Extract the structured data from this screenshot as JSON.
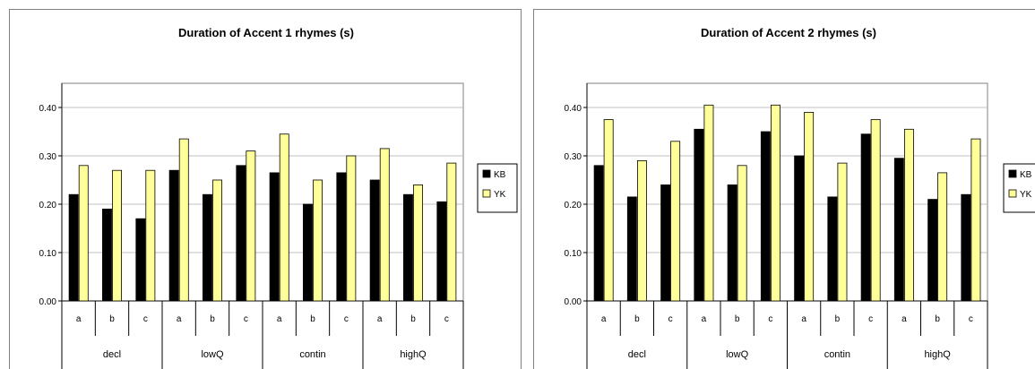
{
  "chart_data": [
    {
      "type": "bar",
      "title": "Duration of Accent 1 rhymes (s)",
      "xlabel": "",
      "ylabel": "",
      "ylim": [
        0,
        0.45
      ],
      "yticks": [
        "0.00",
        "0.10",
        "0.20",
        "0.30",
        "0.40"
      ],
      "ytick_values": [
        0,
        0.1,
        0.2,
        0.3,
        0.4
      ],
      "groups": [
        "decl",
        "lowQ",
        "contin",
        "highQ"
      ],
      "categories": [
        "a",
        "b",
        "c",
        "a",
        "b",
        "c",
        "a",
        "b",
        "c",
        "a",
        "b",
        "c"
      ],
      "series": [
        {
          "name": "KB",
          "color": "#000000",
          "values": [
            0.22,
            0.19,
            0.17,
            0.27,
            0.22,
            0.28,
            0.265,
            0.2,
            0.265,
            0.25,
            0.22,
            0.205
          ]
        },
        {
          "name": "YK",
          "color": "#ffff99",
          "values": [
            0.28,
            0.27,
            0.27,
            0.335,
            0.25,
            0.31,
            0.345,
            0.25,
            0.3,
            0.315,
            0.24,
            0.285
          ]
        }
      ],
      "grid": true,
      "legend": "right"
    },
    {
      "type": "bar",
      "title": "Duration of Accent 2 rhymes (s)",
      "xlabel": "",
      "ylabel": "",
      "ylim": [
        0,
        0.45
      ],
      "yticks": [
        "0.00",
        "0.10",
        "0.20",
        "0.30",
        "0.40"
      ],
      "ytick_values": [
        0,
        0.1,
        0.2,
        0.3,
        0.4
      ],
      "groups": [
        "decl",
        "lowQ",
        "contin",
        "highQ"
      ],
      "categories": [
        "a",
        "b",
        "c",
        "a",
        "b",
        "c",
        "a",
        "b",
        "c",
        "a",
        "b",
        "c"
      ],
      "series": [
        {
          "name": "KB",
          "color": "#000000",
          "values": [
            0.28,
            0.215,
            0.24,
            0.355,
            0.24,
            0.35,
            0.3,
            0.215,
            0.345,
            0.295,
            0.21,
            0.22
          ]
        },
        {
          "name": "YK",
          "color": "#ffff99",
          "values": [
            0.375,
            0.29,
            0.33,
            0.405,
            0.28,
            0.405,
            0.39,
            0.285,
            0.375,
            0.355,
            0.265,
            0.335
          ]
        }
      ],
      "grid": true,
      "legend": "right"
    }
  ]
}
